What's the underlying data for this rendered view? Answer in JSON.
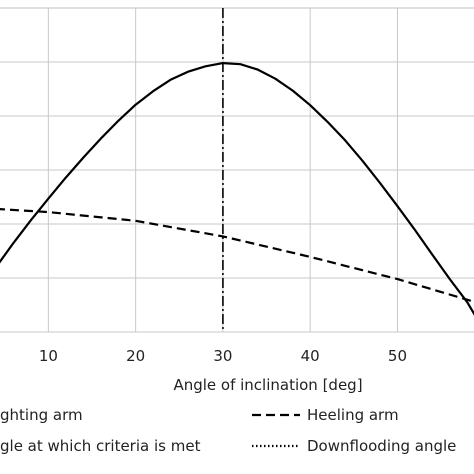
{
  "chart_data": {
    "type": "line",
    "xlabel": "Angle of inclination [deg]",
    "x_ticks": [
      10,
      20,
      30,
      40,
      50
    ],
    "xlim": [
      4,
      59
    ],
    "ylim": [
      0,
      6
    ],
    "y_gridlines": [
      0,
      1,
      2,
      3,
      4,
      5
    ],
    "grid": true,
    "series": [
      {
        "name": "Righting arm",
        "style": "solid",
        "color": "#000000",
        "x": [
          4,
          6,
          8,
          10,
          12,
          14,
          16,
          18,
          20,
          22,
          24,
          26,
          28,
          30,
          32,
          34,
          36,
          38,
          40,
          42,
          44,
          46,
          48,
          50,
          52,
          54,
          56,
          58,
          59
        ],
        "y": [
          1.2,
          1.65,
          2.07,
          2.47,
          2.86,
          3.23,
          3.58,
          3.91,
          4.21,
          4.46,
          4.67,
          4.82,
          4.92,
          4.98,
          4.96,
          4.86,
          4.69,
          4.47,
          4.2,
          3.89,
          3.55,
          3.17,
          2.76,
          2.33,
          1.89,
          1.43,
          0.98,
          0.55,
          0.28
        ]
      },
      {
        "name": "Heeling arm",
        "style": "dashed",
        "color": "#000000",
        "x": [
          4,
          10,
          20,
          30,
          40,
          50,
          59
        ],
        "y": [
          2.28,
          2.22,
          2.06,
          1.77,
          1.39,
          0.98,
          0.55
        ]
      }
    ],
    "vertical_lines": [
      {
        "name": "Angle at which criteria is met",
        "x": 30,
        "style": "dashdot"
      },
      {
        "name": "Downflooding angle",
        "x": 59,
        "style": "dotted"
      }
    ],
    "legend": {
      "placement": "bottom",
      "entries": [
        {
          "label": "ghting arm",
          "style": "solid"
        },
        {
          "label": "Heeling arm",
          "style": "dashed"
        },
        {
          "label": "gle at which criteria is met",
          "style": "dashdot"
        },
        {
          "label": "Downflooding angle",
          "style": "dotted"
        }
      ]
    }
  }
}
